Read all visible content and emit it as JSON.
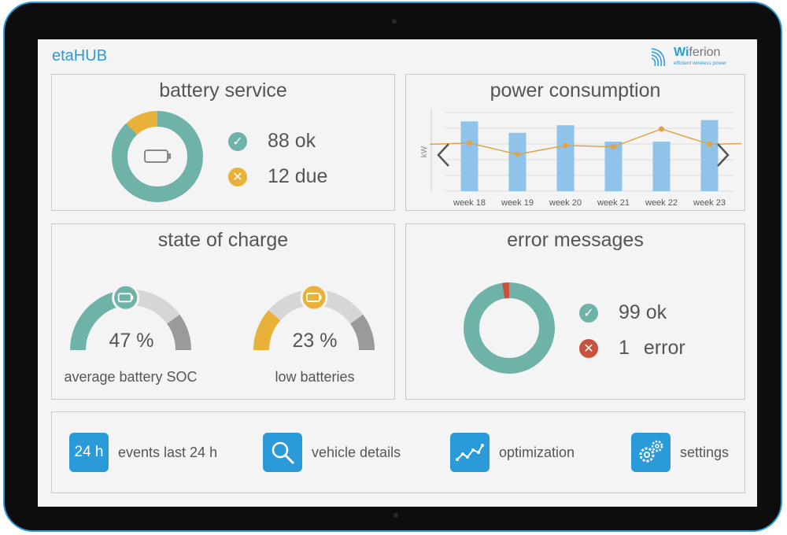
{
  "app": {
    "title": "etaHUB"
  },
  "brand": {
    "name_bold": "Wi",
    "name_rest": "ferion",
    "tagline": "efficient wireless power",
    "color": "#2a9bd8"
  },
  "battery_service": {
    "title": "battery service",
    "ok_label": "88 ok",
    "due_label": "12 due",
    "ok_value": 88,
    "due_value": 12,
    "ok_color": "#6fb3a8",
    "due_color": "#e8b23a",
    "center_icon": "battery-icon"
  },
  "power_consumption": {
    "title": "power consumption",
    "chart_data": {
      "type": "bar",
      "categories": [
        "week 18",
        "week 19",
        "week 20",
        "week 21",
        "week 22",
        "week 23"
      ],
      "series": [
        {
          "values": [
            5.5,
            4.6,
            5.2,
            3.9,
            3.9,
            5.6
          ],
          "color": "#8fc3ea"
        },
        {
          "values": [
            3.8,
            2.9,
            3.6,
            3.5,
            4.9,
            3.7
          ],
          "color": "#e0a24a"
        }
      ],
      "ylabel": "kW",
      "ylim": [
        0,
        6.2
      ],
      "grid": true,
      "legend": "none"
    },
    "prev_icon": "chevron-left-icon",
    "next_icon": "chevron-right-icon"
  },
  "state_of_charge": {
    "title": "state of charge",
    "gauges": [
      {
        "value_label": "47 %",
        "value": 47,
        "label": "average battery SOC",
        "color": "#6fb3a8",
        "icon": "battery-icon"
      },
      {
        "value_label": "23 %",
        "value": 23,
        "label": "low batteries",
        "color": "#e8b23a",
        "icon": "battery-icon"
      }
    ]
  },
  "error_messages": {
    "title": "error messages",
    "ok_label": "99 ok",
    "error_count": "1",
    "error_word": "error",
    "ok_value": 99,
    "error_value": 1,
    "ok_color": "#6fb3a8",
    "error_color": "#c8523b"
  },
  "nav": {
    "items": [
      {
        "tile_text": "24 h",
        "label": "events last 24 h"
      },
      {
        "tile_icon": "magnifier-icon",
        "label": "vehicle details"
      },
      {
        "tile_icon": "trend-chart-icon",
        "label": "optimization"
      },
      {
        "tile_icon": "gears-icon",
        "label": "settings"
      }
    ]
  }
}
